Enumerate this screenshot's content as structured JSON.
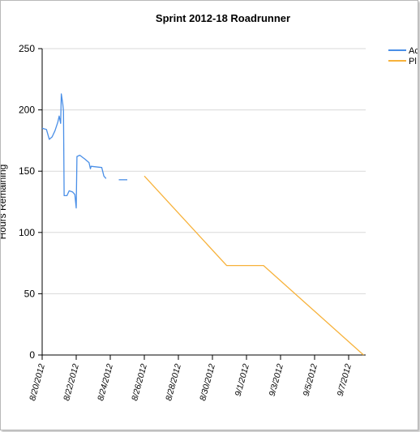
{
  "chart_data": {
    "type": "line",
    "title": "Sprint 2012-18 Roadrunner",
    "xlabel": "",
    "ylabel": "Hours Remaining",
    "ylim": [
      0,
      250
    ],
    "yticks": [
      0,
      50,
      100,
      150,
      200,
      250
    ],
    "xlim": [
      "2012-08-20",
      "2012-09-08"
    ],
    "xticks": [
      "8/20/2012",
      "8/22/2012",
      "8/24/2012",
      "8/26/2012",
      "8/28/2012",
      "8/30/2012",
      "9/1/2012",
      "9/3/2012",
      "9/5/2012",
      "9/7/2012"
    ],
    "grid": "horizontal",
    "legend": "top-right",
    "series": [
      {
        "name": "Actual",
        "legend_text": "Ac",
        "color": "#4a8fe7",
        "segments": [
          [
            {
              "x": "2012-08-20 00:00",
              "y": 185
            },
            {
              "x": "2012-08-20 06:00",
              "y": 184
            },
            {
              "x": "2012-08-20 10:00",
              "y": 176
            },
            {
              "x": "2012-08-20 14:00",
              "y": 178
            },
            {
              "x": "2012-08-20 18:00",
              "y": 183
            },
            {
              "x": "2012-08-20 22:00",
              "y": 190
            },
            {
              "x": "2012-08-21 00:00",
              "y": 195
            },
            {
              "x": "2012-08-21 02:00",
              "y": 189
            },
            {
              "x": "2012-08-21 03:00",
              "y": 213
            },
            {
              "x": "2012-08-21 05:00",
              "y": 205
            },
            {
              "x": "2012-08-21 06:00",
              "y": 199
            },
            {
              "x": "2012-08-21 07:00",
              "y": 130
            },
            {
              "x": "2012-08-21 11:00",
              "y": 130
            },
            {
              "x": "2012-08-21 14:00",
              "y": 134
            },
            {
              "x": "2012-08-21 19:00",
              "y": 133
            },
            {
              "x": "2012-08-21 22:00",
              "y": 131
            },
            {
              "x": "2012-08-22 00:00",
              "y": 120
            },
            {
              "x": "2012-08-22 01:00",
              "y": 162
            },
            {
              "x": "2012-08-22 05:00",
              "y": 163
            },
            {
              "x": "2012-08-22 12:00",
              "y": 160
            },
            {
              "x": "2012-08-22 18:00",
              "y": 157
            },
            {
              "x": "2012-08-22 20:00",
              "y": 152
            },
            {
              "x": "2012-08-22 21:00",
              "y": 154
            },
            {
              "x": "2012-08-23 12:00",
              "y": 153
            },
            {
              "x": "2012-08-23 15:00",
              "y": 146
            },
            {
              "x": "2012-08-23 18:00",
              "y": 144
            }
          ],
          [
            {
              "x": "2012-08-24 12:00",
              "y": 143
            },
            {
              "x": "2012-08-25 00:00",
              "y": 143
            }
          ]
        ]
      },
      {
        "name": "Planned",
        "legend_text": "Pl",
        "color": "#f7b23b",
        "segments": [
          [
            {
              "x": "2012-08-26 00:00",
              "y": 146
            },
            {
              "x": "2012-08-30 20:00",
              "y": 73
            },
            {
              "x": "2012-09-02 00:00",
              "y": 73
            },
            {
              "x": "2012-09-07 21:00",
              "y": 0
            }
          ]
        ]
      }
    ]
  }
}
